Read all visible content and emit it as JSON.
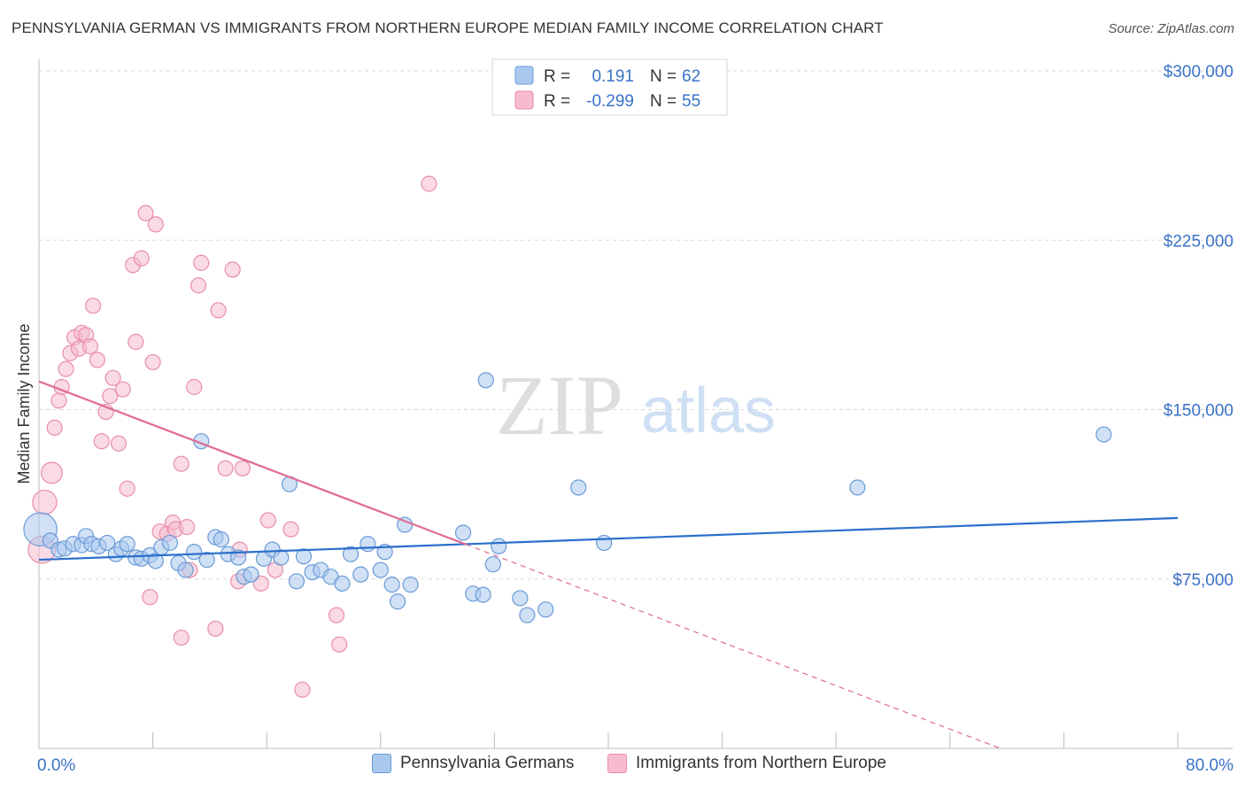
{
  "title": "PENNSYLVANIA GERMAN VS IMMIGRANTS FROM NORTHERN EUROPE MEDIAN FAMILY INCOME CORRELATION CHART",
  "source": "Source: ZipAtlas.com",
  "watermark": {
    "zip": "ZIP",
    "atlas": "atlas"
  },
  "colors": {
    "blue_fill": "#aac8ee",
    "blue_stroke": "#6a9ad6",
    "blue_line": "#2a6fcc",
    "pink_fill": "#f6bccd",
    "pink_stroke": "#e88ea9",
    "pink_line": "#e06a94",
    "axis_text": "#3a72c8",
    "grid": "#d8d8d8"
  },
  "stats": [
    {
      "r_label": "R =",
      "r_value": "0.191",
      "n_label": "N =",
      "n_value": "62"
    },
    {
      "r_label": "R =",
      "r_value": "-0.299",
      "n_label": "N =",
      "n_value": "55"
    }
  ],
  "chart_data": {
    "type": "scatter",
    "title": "PENNSYLVANIA GERMAN VS IMMIGRANTS FROM NORTHERN EUROPE MEDIAN FAMILY INCOME CORRELATION CHART",
    "xlabel": "",
    "ylabel": "Median Family Income",
    "xlim": [
      0,
      80
    ],
    "ylim": [
      0,
      300000
    ],
    "x_tick_labels": [
      "0.0%",
      "80.0%"
    ],
    "y_ticks": [
      75000,
      150000,
      225000,
      300000
    ],
    "y_tick_labels": [
      "$75,000",
      "$150,000",
      "$225,000",
      "$300,000"
    ],
    "grid": true,
    "legend": "bottom",
    "series": [
      {
        "name": "Pennsylvania Germans",
        "color": "#aac8ee",
        "trend": {
          "x": [
            0,
            80
          ],
          "y": [
            83500,
            102000
          ],
          "dashed_after": null
        },
        "points": [
          [
            0.1,
            97000,
            2.2
          ],
          [
            0.8,
            92000,
            1
          ],
          [
            1.4,
            88000,
            1
          ],
          [
            1.8,
            88500,
            1
          ],
          [
            2.4,
            90500,
            1
          ],
          [
            3.0,
            90000,
            1
          ],
          [
            3.3,
            94000,
            1
          ],
          [
            3.7,
            90500,
            1
          ],
          [
            4.2,
            89500,
            1
          ],
          [
            4.8,
            91000,
            1
          ],
          [
            5.4,
            86000,
            1
          ],
          [
            5.8,
            88500,
            1
          ],
          [
            6.2,
            90500,
            1
          ],
          [
            6.8,
            84500,
            1
          ],
          [
            7.2,
            84000,
            1
          ],
          [
            7.8,
            85500,
            1
          ],
          [
            8.2,
            83000,
            1
          ],
          [
            8.6,
            89000,
            1
          ],
          [
            9.2,
            91000,
            1
          ],
          [
            9.8,
            82000,
            1
          ],
          [
            10.3,
            79000,
            1
          ],
          [
            10.9,
            87000,
            1
          ],
          [
            11.4,
            136000,
            1
          ],
          [
            11.8,
            83500,
            1
          ],
          [
            12.4,
            93500,
            1
          ],
          [
            12.8,
            92500,
            1
          ],
          [
            13.3,
            86000,
            1
          ],
          [
            14.0,
            84500,
            1
          ],
          [
            14.4,
            76000,
            1
          ],
          [
            14.9,
            77000,
            1
          ],
          [
            15.8,
            84000,
            1
          ],
          [
            16.4,
            88000,
            1
          ],
          [
            17.0,
            84500,
            1
          ],
          [
            17.6,
            117000,
            1
          ],
          [
            18.1,
            74000,
            1
          ],
          [
            18.6,
            85000,
            1
          ],
          [
            19.2,
            78000,
            1
          ],
          [
            19.8,
            79000,
            1
          ],
          [
            20.5,
            76000,
            1
          ],
          [
            21.3,
            73000,
            1
          ],
          [
            21.9,
            86000,
            1
          ],
          [
            22.6,
            77000,
            1
          ],
          [
            23.1,
            90500,
            1
          ],
          [
            24.0,
            79000,
            1
          ],
          [
            24.3,
            87000,
            1
          ],
          [
            24.8,
            72500,
            1
          ],
          [
            25.2,
            65000,
            1
          ],
          [
            25.7,
            99000,
            1
          ],
          [
            26.1,
            72500,
            1
          ],
          [
            29.8,
            95500,
            1
          ],
          [
            30.5,
            68500,
            1
          ],
          [
            31.2,
            68000,
            1
          ],
          [
            31.4,
            163000,
            1
          ],
          [
            31.9,
            81500,
            1
          ],
          [
            32.3,
            89500,
            1
          ],
          [
            33.8,
            66500,
            1
          ],
          [
            34.3,
            59000,
            1
          ],
          [
            35.6,
            61500,
            1
          ],
          [
            37.9,
            115500,
            1
          ],
          [
            39.7,
            91000,
            1
          ],
          [
            57.5,
            115500,
            1
          ],
          [
            74.8,
            139000,
            1
          ]
        ]
      },
      {
        "name": "Immigrants from Northern Europe",
        "color": "#f6bccd",
        "trend": {
          "x": [
            0,
            80
          ],
          "y": [
            162500,
            -30000
          ],
          "dashed_after": 30
        },
        "points": [
          [
            0.2,
            88000,
            1.8
          ],
          [
            0.4,
            109000,
            1.6
          ],
          [
            0.9,
            122000,
            1.4
          ],
          [
            1.1,
            142000,
            1
          ],
          [
            1.4,
            154000,
            1
          ],
          [
            1.6,
            160000,
            1
          ],
          [
            1.9,
            168000,
            1
          ],
          [
            2.2,
            175000,
            1
          ],
          [
            2.5,
            182000,
            1
          ],
          [
            2.8,
            177000,
            1
          ],
          [
            3.0,
            184000,
            1
          ],
          [
            3.3,
            183000,
            1
          ],
          [
            3.6,
            178000,
            1
          ],
          [
            3.8,
            196000,
            1
          ],
          [
            4.1,
            172000,
            1
          ],
          [
            4.4,
            136000,
            1
          ],
          [
            4.7,
            149000,
            1
          ],
          [
            5.0,
            156000,
            1
          ],
          [
            5.2,
            164000,
            1
          ],
          [
            5.6,
            135000,
            1
          ],
          [
            5.9,
            159000,
            1
          ],
          [
            6.2,
            115000,
            1
          ],
          [
            6.6,
            214000,
            1
          ],
          [
            6.8,
            180000,
            1
          ],
          [
            7.2,
            217000,
            1
          ],
          [
            7.5,
            237000,
            1
          ],
          [
            7.8,
            67000,
            1
          ],
          [
            8.0,
            171000,
            1
          ],
          [
            8.2,
            232000,
            1
          ],
          [
            8.5,
            96000,
            1
          ],
          [
            9.0,
            95000,
            1
          ],
          [
            9.4,
            100000,
            1
          ],
          [
            9.6,
            97000,
            1
          ],
          [
            10.0,
            49000,
            1
          ],
          [
            10.0,
            126000,
            1
          ],
          [
            10.4,
            98000,
            1
          ],
          [
            10.6,
            79000,
            1
          ],
          [
            10.9,
            160000,
            1
          ],
          [
            11.2,
            205000,
            1
          ],
          [
            11.4,
            215000,
            1
          ],
          [
            12.4,
            53000,
            1
          ],
          [
            12.6,
            194000,
            1
          ],
          [
            13.1,
            124000,
            1
          ],
          [
            13.6,
            212000,
            1
          ],
          [
            14.0,
            74000,
            1
          ],
          [
            14.3,
            124000,
            1
          ],
          [
            14.1,
            88000,
            1
          ],
          [
            15.6,
            73000,
            1
          ],
          [
            16.1,
            101000,
            1
          ],
          [
            16.6,
            79000,
            1
          ],
          [
            17.7,
            97000,
            1
          ],
          [
            18.5,
            26000,
            1
          ],
          [
            20.9,
            59000,
            1
          ],
          [
            21.1,
            46000,
            1
          ],
          [
            27.4,
            250000,
            1
          ]
        ]
      }
    ]
  }
}
